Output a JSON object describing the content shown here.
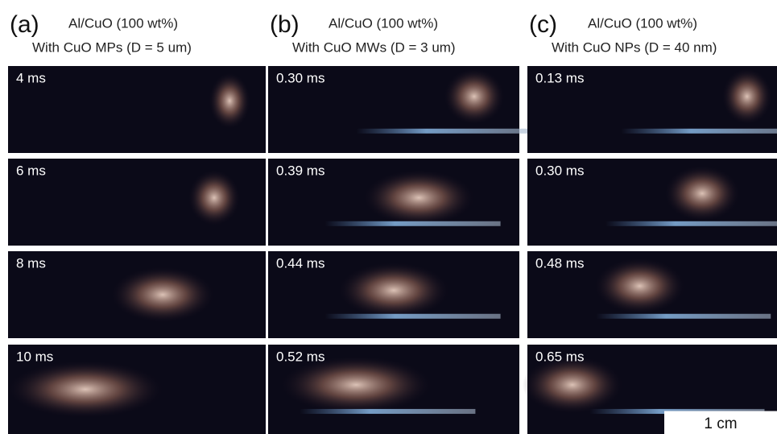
{
  "columns": [
    {
      "label": "(a)",
      "title": "Al/CuO (100 wt%)",
      "subtitle": "With  CuO MPs (D = 5 um)",
      "frames": [
        "4 ms",
        "6 ms",
        "8 ms",
        "10 ms"
      ]
    },
    {
      "label": "(b)",
      "title": "Al/CuO (100 wt%)",
      "subtitle": "With  CuO MWs (D = 3 um)",
      "frames": [
        "0.30 ms",
        "0.39 ms",
        "0.44 ms",
        "0.52 ms"
      ]
    },
    {
      "label": "(c)",
      "title": "Al/CuO (100 wt%)",
      "subtitle": "With  CuO NPs (D = 40 nm)",
      "frames": [
        "0.13 ms",
        "0.30 ms",
        "0.48 ms",
        "0.65 ms"
      ]
    }
  ],
  "scale_bar": "1 cm"
}
